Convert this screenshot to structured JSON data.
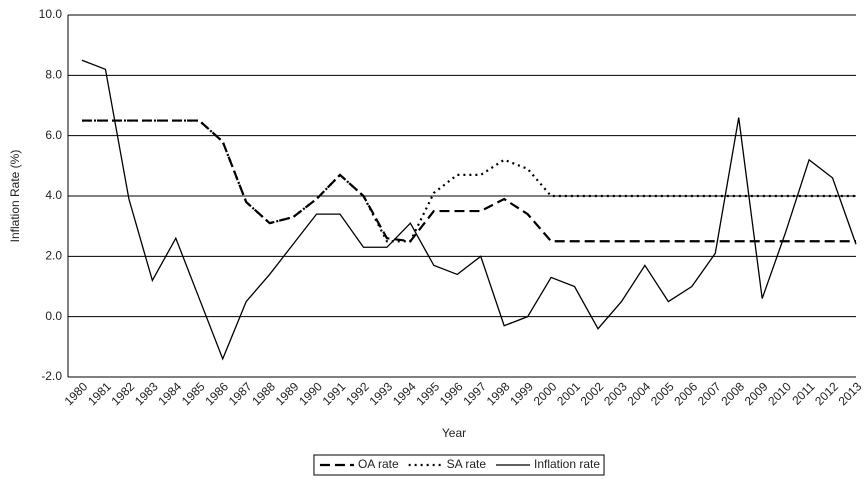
{
  "chart_data": {
    "type": "line",
    "x_label": "Year",
    "y_label": "Inflation Rate (%)",
    "categories": [
      "1980",
      "1981",
      "1982",
      "1983",
      "1984",
      "1985",
      "1986",
      "1987",
      "1988",
      "1989",
      "1990",
      "1991",
      "1992",
      "1993",
      "1994",
      "1995",
      "1996",
      "1997",
      "1998",
      "1999",
      "2000",
      "2001",
      "2002",
      "2003",
      "2004",
      "2005",
      "2006",
      "2007",
      "2008",
      "2009",
      "2010",
      "2011",
      "2012",
      "2013"
    ],
    "series": [
      {
        "name": "OA rate",
        "color": "#000000",
        "line_style": "dashed",
        "values": [
          6.5,
          6.5,
          6.5,
          6.5,
          6.5,
          6.5,
          5.8,
          3.8,
          3.1,
          3.3,
          3.9,
          4.7,
          4.0,
          2.6,
          2.5,
          3.5,
          3.5,
          3.5,
          3.9,
          3.4,
          2.5,
          2.5,
          2.5,
          2.5,
          2.5,
          2.5,
          2.5,
          2.5,
          2.5,
          2.5,
          2.5,
          2.5,
          2.5,
          2.5
        ]
      },
      {
        "name": "SA rate",
        "color": "#000000",
        "line_style": "dotted",
        "values": [
          6.5,
          6.5,
          6.5,
          6.5,
          6.5,
          6.5,
          5.8,
          3.8,
          3.1,
          3.3,
          3.9,
          4.7,
          4.0,
          2.5,
          2.5,
          4.1,
          4.7,
          4.7,
          5.2,
          4.9,
          4.0,
          4.0,
          4.0,
          4.0,
          4.0,
          4.0,
          4.0,
          4.0,
          4.0,
          4.0,
          4.0,
          4.0,
          4.0,
          4.0
        ]
      },
      {
        "name": "Inflation rate",
        "color": "#000000",
        "line_style": "solid",
        "values": [
          8.5,
          8.2,
          3.9,
          1.2,
          2.6,
          0.6,
          -1.4,
          0.5,
          1.4,
          2.4,
          3.4,
          3.4,
          2.3,
          2.3,
          3.1,
          1.7,
          1.4,
          2.0,
          -0.3,
          0.0,
          1.3,
          1.0,
          -0.4,
          0.5,
          1.7,
          0.5,
          1.0,
          2.1,
          6.6,
          0.6,
          2.8,
          5.2,
          4.6,
          2.4
        ]
      }
    ],
    "ylim": [
      -2,
      10
    ],
    "yticks": [
      {
        "value": -2,
        "label": "-2.0"
      },
      {
        "value": 0,
        "label": "0.0"
      },
      {
        "value": 2,
        "label": "2.0"
      },
      {
        "value": 4,
        "label": "4.0"
      },
      {
        "value": 6,
        "label": "6.0"
      },
      {
        "value": 8,
        "label": "8.0"
      },
      {
        "value": 10,
        "label": "10.0"
      }
    ],
    "grid": true,
    "legend": "bottom"
  }
}
